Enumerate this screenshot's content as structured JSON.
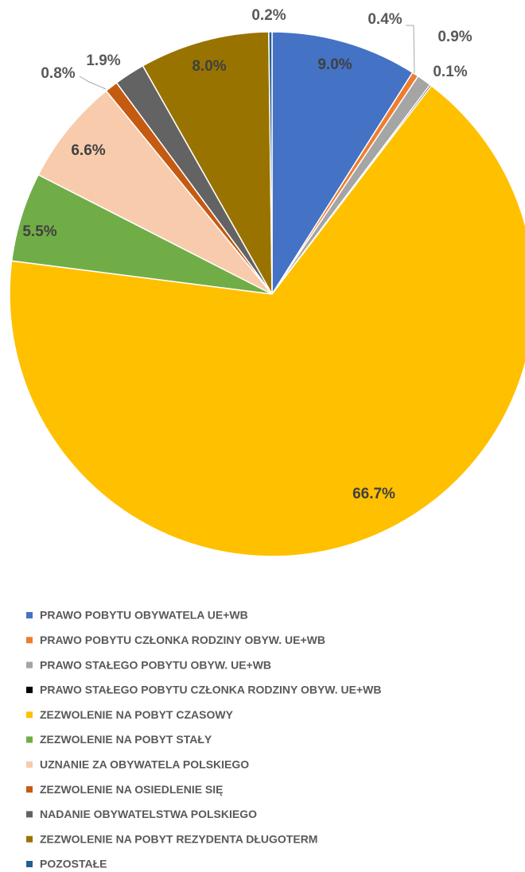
{
  "chart_data": {
    "type": "pie",
    "categories": [
      "PRAWO POBYTU OBYWATELA UE+WB",
      "PRAWO POBYTU CZŁONKA RODZINY OBYW. UE+WB",
      "PRAWO STAŁEGO POBYTU OBYW. UE+WB",
      "PRAWO STAŁEGO POBYTU CZŁONKA RODZINY OBYW. UE+WB",
      "ZEZWOLENIE NA POBYT CZASOWY",
      "ZEZWOLENIE NA POBYT STAŁY",
      "UZNANIE ZA OBYWATELA POLSKIEGO",
      "ZEZWOLENIE NA OSIEDLENIE SIĘ",
      "NADANIE OBYWATELSTWA POLSKIEGO",
      "ZEZWOLENIE NA POBYT REZYDENTA DŁUGOTERM",
      "POZOSTAŁE"
    ],
    "values": [
      9.0,
      0.4,
      0.9,
      0.1,
      66.7,
      5.5,
      6.6,
      0.8,
      1.9,
      8.0,
      0.2
    ],
    "value_labels": [
      "9.0%",
      "0.4%",
      "0.9%",
      "0.1%",
      "66.7%",
      "5.5%",
      "6.6%",
      "0.8%",
      "1.9%",
      "8.0%",
      "0.2%"
    ],
    "colors": [
      "#4472c4",
      "#ed7d31",
      "#a5a5a5",
      "#000000",
      "#ffc000",
      "#70ad47",
      "#f8cbad",
      "#c55a11",
      "#636363",
      "#997300",
      "#255e91"
    ],
    "legend": "bottom"
  }
}
